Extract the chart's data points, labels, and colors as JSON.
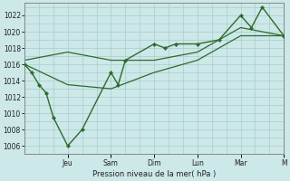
{
  "background_color": "#cce8e8",
  "grid_color": "#aacccc",
  "line_color": "#2d6b2d",
  "marker_color": "#2d6b2d",
  "xlabel": "Pression niveau de la mer( hPa )",
  "ylim": [
    1005.0,
    1023.5
  ],
  "yticks": [
    1006,
    1008,
    1010,
    1012,
    1014,
    1016,
    1018,
    1020,
    1022
  ],
  "xlim": [
    0,
    144
  ],
  "day_tick_positions": [
    24,
    48,
    72,
    96,
    120,
    144
  ],
  "day_labels": [
    "Jeu",
    "Sam",
    "Dim",
    "Lun",
    "Mar",
    "M"
  ],
  "series": [
    {
      "x": [
        0,
        4,
        8,
        12,
        16,
        24,
        32,
        48,
        52,
        56,
        72,
        78,
        84,
        96,
        108,
        120,
        126,
        132,
        144
      ],
      "y": [
        1016.0,
        1015.0,
        1013.5,
        1012.5,
        1009.5,
        1006.0,
        1008.0,
        1015.0,
        1013.5,
        1016.5,
        1018.5,
        1018.0,
        1018.5,
        1018.5,
        1019.0,
        1022.0,
        1020.5,
        1023.0,
        1019.5
      ],
      "has_markers": true,
      "linewidth": 1.0
    },
    {
      "x": [
        0,
        24,
        48,
        72,
        96,
        120,
        144
      ],
      "y": [
        1016.5,
        1017.5,
        1016.5,
        1016.5,
        1017.5,
        1020.5,
        1019.5
      ],
      "has_markers": false,
      "linewidth": 0.9
    },
    {
      "x": [
        0,
        24,
        48,
        72,
        96,
        120,
        144
      ],
      "y": [
        1016.0,
        1013.5,
        1013.0,
        1015.0,
        1016.5,
        1019.5,
        1019.5
      ],
      "has_markers": false,
      "linewidth": 0.9
    }
  ]
}
